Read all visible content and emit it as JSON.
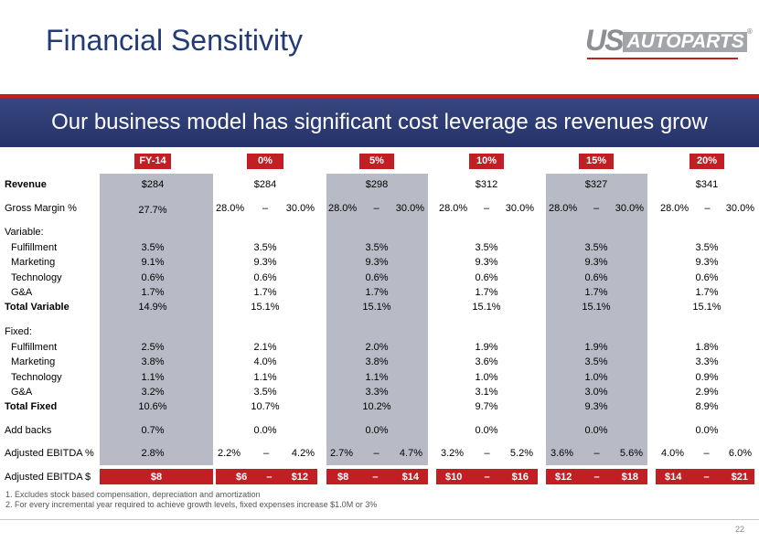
{
  "title": "Financial Sensitivity",
  "logo": {
    "us": "US",
    "autoparts": "AUTOPARTS",
    "reg": "®"
  },
  "banner": "Our business model has significant cost leverage as revenues grow",
  "headers": [
    "FY-14",
    "0%",
    "5%",
    "10%",
    "15%",
    "20%"
  ],
  "row_labels": {
    "revenue": "Revenue",
    "gross_margin": "Gross Margin %",
    "variable": "Variable:",
    "v_fulfillment": "Fulfillment",
    "v_marketing": "Marketing",
    "v_technology": "Technology",
    "v_ga": "G&A",
    "total_variable": "Total Variable",
    "fixed": "Fixed:",
    "f_fulfillment": "Fulfillment",
    "f_marketing": "Marketing",
    "f_technology": "Technology",
    "f_ga": "G&A",
    "total_fixed": "Total Fixed",
    "add_backs": "Add backs",
    "adj_ebitda_pct": "Adjusted EBITDA %",
    "adj_ebitda_dollar": "Adjusted EBITDA $"
  },
  "dash": "–",
  "revenue": [
    "$284",
    "$284",
    "$298",
    "$312",
    "$327",
    "$341"
  ],
  "gross_margin": {
    "fy14": "27.7%",
    "ranges": [
      [
        "28.0%",
        "30.0%"
      ],
      [
        "28.0%",
        "30.0%"
      ],
      [
        "28.0%",
        "30.0%"
      ],
      [
        "28.0%",
        "30.0%"
      ],
      [
        "28.0%",
        "30.0%"
      ]
    ]
  },
  "v_fulfillment": [
    "3.5%",
    "3.5%",
    "3.5%",
    "3.5%",
    "3.5%",
    "3.5%"
  ],
  "v_marketing": [
    "9.1%",
    "9.3%",
    "9.3%",
    "9.3%",
    "9.3%",
    "9.3%"
  ],
  "v_technology": [
    "0.6%",
    "0.6%",
    "0.6%",
    "0.6%",
    "0.6%",
    "0.6%"
  ],
  "v_ga": [
    "1.7%",
    "1.7%",
    "1.7%",
    "1.7%",
    "1.7%",
    "1.7%"
  ],
  "total_variable": [
    "14.9%",
    "15.1%",
    "15.1%",
    "15.1%",
    "15.1%",
    "15.1%"
  ],
  "f_fulfillment": [
    "2.5%",
    "2.1%",
    "2.0%",
    "1.9%",
    "1.9%",
    "1.8%"
  ],
  "f_marketing": [
    "3.8%",
    "4.0%",
    "3.8%",
    "3.6%",
    "3.5%",
    "3.3%"
  ],
  "f_technology": [
    "1.1%",
    "1.1%",
    "1.1%",
    "1.0%",
    "1.0%",
    "0.9%"
  ],
  "f_ga": [
    "3.2%",
    "3.5%",
    "3.3%",
    "3.1%",
    "3.0%",
    "2.9%"
  ],
  "total_fixed": [
    "10.6%",
    "10.7%",
    "10.2%",
    "9.7%",
    "9.3%",
    "8.9%"
  ],
  "add_backs": [
    "0.7%",
    "0.0%",
    "0.0%",
    "0.0%",
    "0.0%",
    "0.0%"
  ],
  "adj_ebitda_pct": {
    "fy14": "2.8%",
    "ranges": [
      [
        "2.2%",
        "4.2%"
      ],
      [
        "2.7%",
        "4.7%"
      ],
      [
        "3.2%",
        "5.2%"
      ],
      [
        "3.6%",
        "5.6%"
      ],
      [
        "4.0%",
        "6.0%"
      ]
    ]
  },
  "adj_ebitda_dollar": {
    "fy14": "$8",
    "ranges": [
      [
        "$6",
        "$12"
      ],
      [
        "$8",
        "$14"
      ],
      [
        "$10",
        "$16"
      ],
      [
        "$12",
        "$18"
      ],
      [
        "$14",
        "$21"
      ]
    ]
  },
  "footnotes": [
    "1.   Excludes stock based compensation, depreciation and amortization",
    "2.   For every incremental year required to achieve growth levels, fixed expenses increase $1.0M or 3%"
  ],
  "page_number": "22",
  "colors": {
    "accent_red": "#c21f24",
    "title_blue": "#233a78",
    "banner_blue": "#2f3c74",
    "shade_gray": "#b8bac5"
  }
}
